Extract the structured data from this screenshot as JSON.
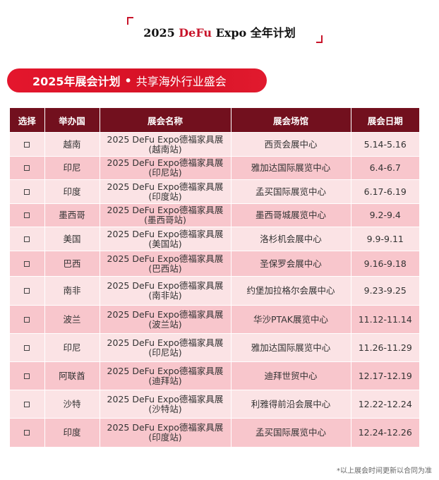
{
  "header": {
    "title_prefix": "2025 ",
    "title_brand": "DeFu",
    "title_mid": " Expo ",
    "title_cn": "全年计划"
  },
  "banner": {
    "main": "2025年展会计划",
    "dot": "•",
    "sub": "共享海外行业盛会"
  },
  "table": {
    "headers": [
      "选择",
      "举办国",
      "展会名称",
      "展会场馆",
      "展会日期"
    ],
    "rows": [
      {
        "checkbox": "□",
        "country": "越南",
        "name1": "2025 DeFu Expo德福家具展",
        "name2": "(越南站)",
        "venue": "西贡会展中心",
        "date": "5.14-5.16"
      },
      {
        "checkbox": "□",
        "country": "印尼",
        "name1": "2025 DeFu Expo德福家具展",
        "name2": "(印尼站)",
        "venue": "雅加达国际展览中心",
        "date": "6.4-6.7"
      },
      {
        "checkbox": "□",
        "country": "印度",
        "name1": "2025 DeFu Expo德福家具展",
        "name2": "(印度站)",
        "venue": "孟买国际展览中心",
        "date": "6.17-6.19"
      },
      {
        "checkbox": "□",
        "country": "墨西哥",
        "name1": "2025 DeFu Expo德福家具展",
        "name2": "(墨西哥站)",
        "venue": "墨西哥城展览中心",
        "date": "9.2-9.4"
      },
      {
        "checkbox": "□",
        "country": "美国",
        "name1": "2025 DeFu Expo德福家具展",
        "name2": "(美国站)",
        "venue": "洛杉机会展中心",
        "date": "9.9-9.11"
      },
      {
        "checkbox": "□",
        "country": "巴西",
        "name1": "2025 DeFu Expo德福家具展",
        "name2": "(巴西站)",
        "venue": "圣保罗会展中心",
        "date": "9.16-9.18"
      },
      {
        "checkbox": "□",
        "country": "南非",
        "name1": "2025 DeFu Expo德福家具展",
        "name2": "(南非站)",
        "venue": "约堡加拉格尔会展中心",
        "date": "9.23-9.25"
      },
      {
        "checkbox": "□",
        "country": "波兰",
        "name1": "2025 DeFu Expo德福家具展",
        "name2": "(波兰站)",
        "venue": "华沙PTAK展览中心",
        "date": "11.12-11.14"
      },
      {
        "checkbox": "□",
        "country": "印尼",
        "name1": "2025 DeFu Expo德福家具展",
        "name2": "(印尼站)",
        "venue": "雅加达国际展览中心",
        "date": "11.26-11.29"
      },
      {
        "checkbox": "□",
        "country": "阿联酋",
        "name1": "2025 DeFu Expo德福家具展",
        "name2": "(迪拜站)",
        "venue": "迪拜世贸中心",
        "date": "12.17-12.19"
      },
      {
        "checkbox": "□",
        "country": "沙特",
        "name1": "2025 DeFu Expo德福家具展",
        "name2": "(沙特站)",
        "venue": "利雅得前沿会展中心",
        "date": "12.22-12.24"
      },
      {
        "checkbox": "□",
        "country": "印度",
        "name1": "2025 DeFu Expo德福家具展",
        "name2": "(印度站)",
        "venue": "孟买国际展览中心",
        "date": "12.24-12.26"
      }
    ]
  },
  "footer": {
    "note": "*以上展会时间更新以合同为准"
  },
  "colors": {
    "brand_red": "#c8142a",
    "header_bg": "#72101e",
    "row_light": "#fbe3e5",
    "row_dark": "#f8c6cc"
  }
}
